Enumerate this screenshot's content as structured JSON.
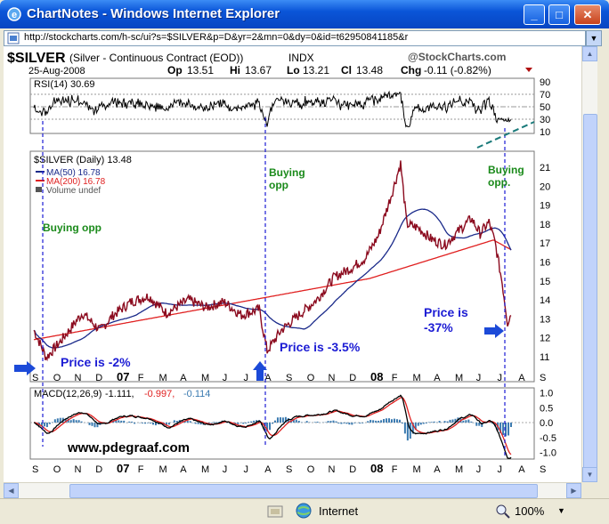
{
  "window": {
    "title": "ChartNotes - Windows Internet Explorer",
    "min": "_",
    "max": "□",
    "close": "✕"
  },
  "address": {
    "url": "http://stockcharts.com/h-sc/ui?s=$SILVER&p=D&yr=2&mn=0&dy=0&id=t62950841185&r"
  },
  "chart_header": {
    "symbol": "$SILVER",
    "desc": "(Silver - Continuous Contract (EOD))",
    "exchange": "INDX",
    "brand": "@StockCharts.com",
    "date": "25-Aug-2008",
    "op_label": "Op",
    "op": "13.51",
    "hi_label": "Hi",
    "hi": "13.67",
    "lo_label": "Lo",
    "lo": "13.21",
    "cl_label": "Cl",
    "cl": "13.48",
    "chg_label": "Chg",
    "chg": "-0.11 (-0.82%)"
  },
  "rsi": {
    "label": "RSI(14) 30.69",
    "ticks": [
      "90",
      "70",
      "50",
      "30",
      "10"
    ]
  },
  "price_panel": {
    "legend_symbol": "$SILVER (Daily) 13.48",
    "legend_ma50": "MA(50) 16.78",
    "legend_ma200": "MA(200) 16.78",
    "legend_volume": "Volume undef",
    "ticks": [
      "21",
      "20",
      "19",
      "18",
      "17",
      "16",
      "15",
      "14",
      "13",
      "12",
      "11"
    ]
  },
  "macd": {
    "label": "MACD(12,26,9)",
    "v1": "-1.111,",
    "v2": "-0.997,",
    "v3": "-0.114",
    "ticks": [
      "1.0",
      "0.5",
      "0.0",
      "-0.5",
      "-1.0"
    ]
  },
  "x_axis": [
    "S",
    "O",
    "N",
    "D",
    "07",
    "F",
    "M",
    "A",
    "M",
    "J",
    "J",
    "A",
    "S",
    "O",
    "N",
    "D",
    "08",
    "F",
    "M",
    "A",
    "M",
    "J",
    "J",
    "A",
    "S"
  ],
  "annotations": {
    "buying_opp_1": "Buying opp",
    "buying_opp_2a": "Buying",
    "buying_opp_2b": "opp",
    "buying_opp_3a": "Buying",
    "buying_opp_3b": "opp.",
    "price_2": "Price is -2%",
    "price_35": "Price is -3.5%",
    "price_37a": "Price is",
    "price_37b": "-37%",
    "watermark": "www.pdegraaf.com"
  },
  "status": {
    "zone": "Internet",
    "zoom": "100%"
  },
  "colors": {
    "price": "#8b0a1e",
    "ma50": "#1a2a8a",
    "ma200": "#e02020",
    "annotation_green": "#1a8a1a",
    "annotation_blue": "#1c1cd4",
    "macd_hist": "#3a7ab0"
  }
}
